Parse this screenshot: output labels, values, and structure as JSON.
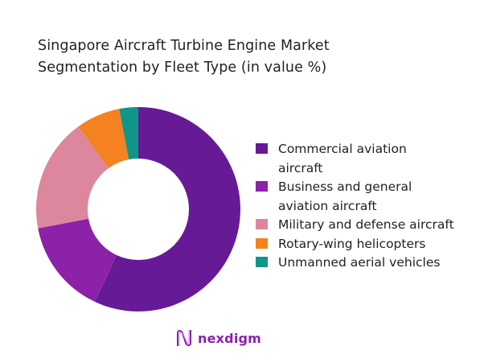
{
  "chart_data": {
    "type": "pie",
    "subtype": "donut",
    "title": "Singapore Aircraft Turbine Engine Market Segmentation by Fleet Type (in value %)",
    "categories": [
      "Commercial aviation aircraft",
      "Business and general aviation aircraft",
      "Military and defense aircraft",
      "Rotary-wing helicopters",
      "Unmanned aerial vehicles"
    ],
    "values": [
      57,
      15,
      18,
      7,
      3
    ],
    "colors": [
      "#661a96",
      "#8b22a8",
      "#dc879e",
      "#f58220",
      "#0f9686"
    ],
    "legend_position": "right",
    "data_labels": false
  },
  "title_lines": [
    "Singapore Aircraft Turbine Engine Market",
    "Segmentation by Fleet Type (in value %)"
  ],
  "legend": [
    {
      "label": "Commercial aviation aircraft",
      "lines": [
        "Commercial aviation",
        "aircraft"
      ],
      "color": "#661a96"
    },
    {
      "label": "Business and general aviation aircraft",
      "lines": [
        "Business and general",
        "aviation aircraft"
      ],
      "color": "#8b22a8"
    },
    {
      "label": "Military and defense aircraft",
      "lines": [
        "Military and defense aircraft"
      ],
      "color": "#dc879e"
    },
    {
      "label": "Rotary-wing helicopters",
      "lines": [
        "Rotary-wing helicopters"
      ],
      "color": "#f58220"
    },
    {
      "label": "Unmanned aerial vehicles",
      "lines": [
        "Unmanned aerial vehicles"
      ],
      "color": "#0f9686"
    }
  ],
  "brand": {
    "name": "nexdigm",
    "icon": "nexdigm-wave-logo-icon",
    "color": "#8a1fb0"
  }
}
